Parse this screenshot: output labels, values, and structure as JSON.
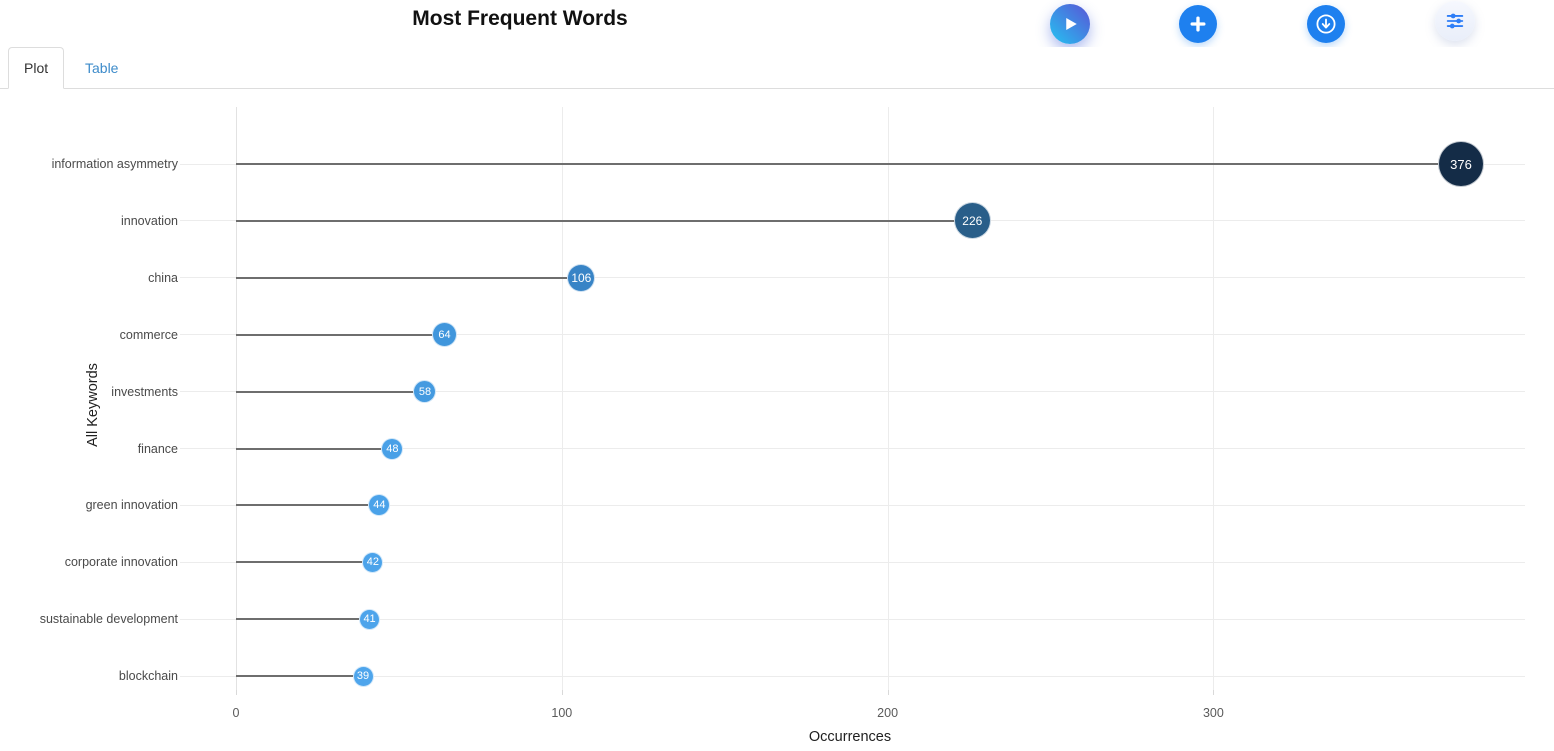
{
  "header": {
    "title": "Most Frequent Words",
    "buttons": [
      {
        "id": "run",
        "icon": "play-icon",
        "bg_from": "#24c3f1",
        "bg_to": "#5a54d6",
        "fg": "#ffffff"
      },
      {
        "id": "add",
        "icon": "plus-icon",
        "bg": "#1e80ef",
        "fg": "#ffffff"
      },
      {
        "id": "download",
        "icon": "download-icon",
        "bg": "#1e80ef",
        "fg": "#ffffff"
      },
      {
        "id": "filters",
        "icon": "sliders-icon",
        "bg": "#eef2fb",
        "fg": "#2e7ef7"
      }
    ]
  },
  "tabs": [
    {
      "label": "Plot",
      "active": true
    },
    {
      "label": "Table",
      "active": false
    }
  ],
  "chart_data": {
    "type": "bar",
    "variant": "horizontal-lollipop",
    "title": "Most Frequent Words",
    "categories": [
      "information asymmetry",
      "innovation",
      "china",
      "commerce",
      "investments",
      "finance",
      "green innovation",
      "corporate innovation",
      "sustainable development",
      "blockchain"
    ],
    "values": [
      376,
      226,
      106,
      64,
      58,
      48,
      44,
      42,
      41,
      39
    ],
    "xlabel": "Occurrences",
    "ylabel": "All Keywords",
    "xticks": [
      0,
      100,
      200,
      300
    ],
    "xlim": [
      0,
      395
    ],
    "grid": true,
    "legend_position": "none",
    "dot_colors": [
      "#142c47",
      "#295e89",
      "#3884c6",
      "#4096dc",
      "#449ae0",
      "#48a0e7",
      "#4aa2e9",
      "#4ca3ea",
      "#4da4eb",
      "#4ea5ec"
    ],
    "dot_sizes": [
      46,
      37,
      28,
      25,
      23,
      22,
      22,
      21,
      21,
      21
    ],
    "stem_color": "#6e6e6e",
    "grid_color": "#ececec",
    "label_color": "#4a4a4a"
  }
}
